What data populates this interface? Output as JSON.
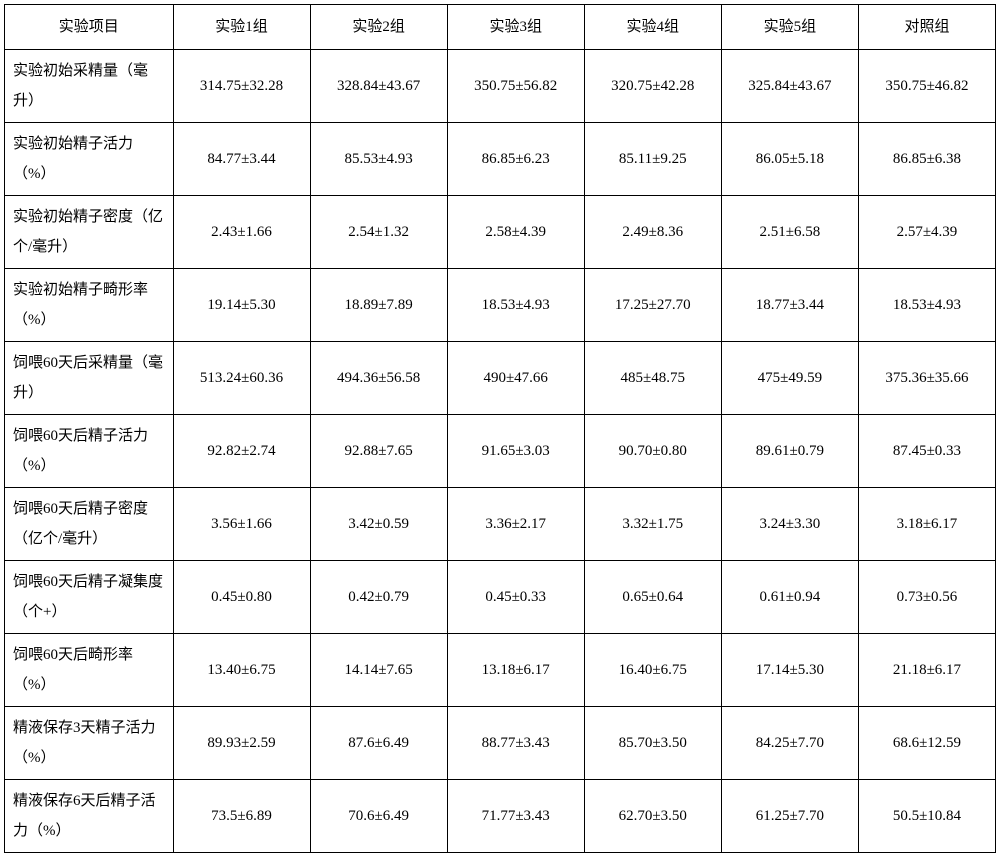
{
  "table": {
    "type": "table",
    "background_color": "#ffffff",
    "border_color": "#000000",
    "text_color": "#000000",
    "font_family": "SimSun",
    "header_fontsize": 15,
    "cell_fontsize": 15,
    "columns": [
      "实验项目",
      "实验1组",
      "实验2组",
      "实验3组",
      "实验4组",
      "实验5组",
      "对照组"
    ],
    "column_widths": [
      "17%",
      "13.83%",
      "13.83%",
      "13.83%",
      "13.83%",
      "13.83%",
      "13.83%"
    ],
    "label_align": "left",
    "data_align": "center",
    "rows": [
      {
        "label": "实验初始采精量（毫升）",
        "cells": [
          "314.75±32.28",
          "328.84±43.67",
          "350.75±56.82",
          "320.75±42.28",
          "325.84±43.67",
          "350.75±46.82"
        ]
      },
      {
        "label": "实验初始精子活力（%）",
        "cells": [
          "84.77±3.44",
          "85.53±4.93",
          "86.85±6.23",
          "85.11±9.25",
          "86.05±5.18",
          "86.85±6.38"
        ]
      },
      {
        "label": "实验初始精子密度（亿个/毫升）",
        "cells": [
          "2.43±1.66",
          "2.54±1.32",
          "2.58±4.39",
          "2.49±8.36",
          "2.51±6.58",
          "2.57±4.39"
        ]
      },
      {
        "label": "实验初始精子畸形率（%）",
        "cells": [
          "19.14±5.30",
          "18.89±7.89",
          "18.53±4.93",
          "17.25±27.70",
          "18.77±3.44",
          "18.53±4.93"
        ]
      },
      {
        "label": "饲喂60天后采精量（毫升）",
        "cells": [
          "513.24±60.36",
          "494.36±56.58",
          "490±47.66",
          "485±48.75",
          "475±49.59",
          "375.36±35.66"
        ]
      },
      {
        "label": "饲喂60天后精子活力（%）",
        "cells": [
          "92.82±2.74",
          "92.88±7.65",
          "91.65±3.03",
          "90.70±0.80",
          "89.61±0.79",
          "87.45±0.33"
        ]
      },
      {
        "label": "饲喂60天后精子密度（亿个/毫升）",
        "cells": [
          "3.56±1.66",
          "3.42±0.59",
          "3.36±2.17",
          "3.32±1.75",
          "3.24±3.30",
          "3.18±6.17"
        ]
      },
      {
        "label": "饲喂60天后精子凝集度（个+）",
        "cells": [
          "0.45±0.80",
          "0.42±0.79",
          "0.45±0.33",
          "0.65±0.64",
          "0.61±0.94",
          "0.73±0.56"
        ]
      },
      {
        "label": "饲喂60天后畸形率（%）",
        "cells": [
          "13.40±6.75",
          "14.14±7.65",
          "13.18±6.17",
          "16.40±6.75",
          "17.14±5.30",
          "21.18±6.17"
        ]
      },
      {
        "label": "精液保存3天精子活力（%）",
        "cells": [
          "89.93±2.59",
          "87.6±6.49",
          "88.77±3.43",
          "85.70±3.50",
          "84.25±7.70",
          "68.6±12.59"
        ]
      },
      {
        "label": "精液保存6天后精子活力（%）",
        "cells": [
          "73.5±6.89",
          "70.6±6.49",
          "71.77±3.43",
          "62.70±3.50",
          "61.25±7.70",
          "50.5±10.84"
        ]
      }
    ]
  }
}
